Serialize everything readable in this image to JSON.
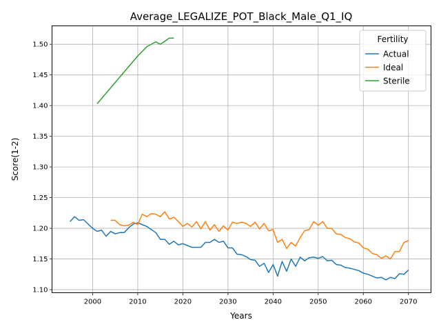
{
  "chart_data": {
    "type": "line",
    "title": "Average_LEGALIZE_POT_Black_Male_Q1_IQ",
    "xlabel": "Years",
    "ylabel": "Score(1-2)",
    "xlim": [
      1991,
      2075
    ],
    "ylim": [
      1.095,
      1.53
    ],
    "x_ticks": [
      2000,
      2010,
      2020,
      2030,
      2040,
      2050,
      2060,
      2070
    ],
    "y_ticks": [
      1.1,
      1.15,
      1.2,
      1.25,
      1.3,
      1.35,
      1.4,
      1.45,
      1.5
    ],
    "y_tick_labels": [
      "1.10",
      "1.15",
      "1.20",
      "1.25",
      "1.30",
      "1.35",
      "1.40",
      "1.45",
      "1.50"
    ],
    "grid": true,
    "legend": {
      "title": "Fertility",
      "placement": "top-right"
    },
    "series": [
      {
        "name": "Actual",
        "color": "#1f77b4",
        "x_start": 1995,
        "values": [
          1.211,
          1.219,
          1.213,
          1.214,
          1.207,
          1.2,
          1.195,
          1.197,
          1.187,
          1.195,
          1.191,
          1.193,
          1.193,
          1.201,
          1.207,
          1.209,
          1.206,
          1.203,
          1.198,
          1.193,
          1.182,
          1.182,
          1.174,
          1.179,
          1.173,
          1.175,
          1.172,
          1.169,
          1.169,
          1.169,
          1.177,
          1.177,
          1.182,
          1.177,
          1.179,
          1.168,
          1.168,
          1.158,
          1.157,
          1.154,
          1.149,
          1.148,
          1.138,
          1.143,
          1.128,
          1.141,
          1.122,
          1.146,
          1.13,
          1.15,
          1.138,
          1.153,
          1.147,
          1.152,
          1.153,
          1.151,
          1.154,
          1.147,
          1.148,
          1.141,
          1.14,
          1.136,
          1.135,
          1.133,
          1.131,
          1.127,
          1.125,
          1.122,
          1.119,
          1.12,
          1.116,
          1.12,
          1.118,
          1.126,
          1.125,
          1.132
        ]
      },
      {
        "name": "Ideal",
        "color": "#ff7f0e",
        "x_start": 2004,
        "values": [
          1.213,
          1.213,
          1.206,
          1.204,
          1.205,
          1.21,
          1.206,
          1.223,
          1.219,
          1.224,
          1.223,
          1.219,
          1.227,
          1.215,
          1.218,
          1.211,
          1.203,
          1.208,
          1.202,
          1.211,
          1.199,
          1.211,
          1.197,
          1.206,
          1.195,
          1.204,
          1.197,
          1.21,
          1.208,
          1.21,
          1.208,
          1.203,
          1.21,
          1.199,
          1.208,
          1.196,
          1.198,
          1.177,
          1.182,
          1.167,
          1.177,
          1.171,
          1.185,
          1.196,
          1.198,
          1.211,
          1.205,
          1.211,
          1.2,
          1.2,
          1.191,
          1.19,
          1.185,
          1.183,
          1.178,
          1.176,
          1.168,
          1.166,
          1.159,
          1.157,
          1.151,
          1.155,
          1.15,
          1.162,
          1.162,
          1.177,
          1.18
        ]
      },
      {
        "name": "Sterile",
        "color": "#2ca02c",
        "x": [
          2001,
          2010,
          2012,
          2014,
          2015,
          2016,
          2017,
          2018
        ],
        "values": [
          1.403,
          1.481,
          1.496,
          1.504,
          1.5,
          1.505,
          1.51,
          1.51
        ]
      }
    ]
  }
}
